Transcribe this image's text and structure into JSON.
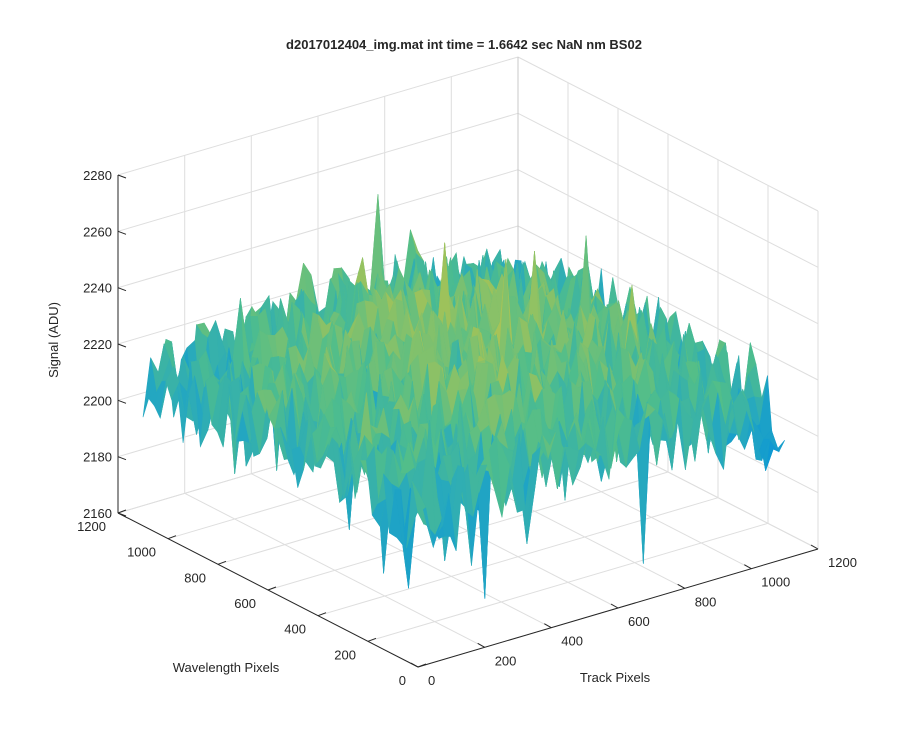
{
  "chart_data": {
    "type": "surface",
    "title": "d2017012404_img.mat int time = 1.6642 sec  NaN nm BS02",
    "xlabel": "Track Pixels",
    "ylabel": "Wavelength Pixels",
    "zlabel": "Signal (ADU)",
    "xlim": [
      0,
      1200
    ],
    "ylim": [
      0,
      1200
    ],
    "zlim": [
      2160,
      2280
    ],
    "x_ticks": [
      "0",
      "200",
      "400",
      "600",
      "800",
      "1000",
      "1200"
    ],
    "y_ticks": [
      "0",
      "200",
      "400",
      "600",
      "800",
      "1000",
      "1200"
    ],
    "z_ticks": [
      "2160",
      "2180",
      "2200",
      "2220",
      "2240",
      "2260",
      "2280"
    ],
    "grid": true,
    "colormap": "parula",
    "surface_summary": {
      "center_mean": 2222,
      "edge_mean": 2210,
      "noise_amplitude": 15,
      "min_dips": 2165,
      "max_spikes": 2270
    },
    "colors": {
      "axis": "#262626",
      "grid": "#dedede",
      "colormap_low": "#0b8fd6",
      "colormap_mid": "#35b7a0",
      "colormap_high": "#d9c84a"
    }
  }
}
